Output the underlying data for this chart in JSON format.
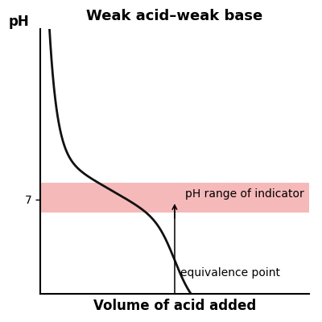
{
  "title": "Weak acid–weak base",
  "xlabel": "Volume of acid added",
  "ylabel": "pH",
  "ytick_label": "7",
  "ytick_value": 7.0,
  "ylim": [
    4.5,
    11.5
  ],
  "xlim": [
    0,
    10
  ],
  "indicator_band_ymin": 6.65,
  "indicator_band_ymax": 7.45,
  "indicator_band_color": "#f08080",
  "indicator_band_alpha": 0.55,
  "indicator_label": "pH range of indicator",
  "equivalence_label": "equivalence point",
  "equivalence_x": 5.0,
  "equivalence_y": 7.0,
  "curve_color": "#111111",
  "curve_linewidth": 2.0,
  "background_color": "#ffffff",
  "title_fontsize": 13,
  "axis_label_fontsize": 12,
  "annotation_fontsize": 10
}
